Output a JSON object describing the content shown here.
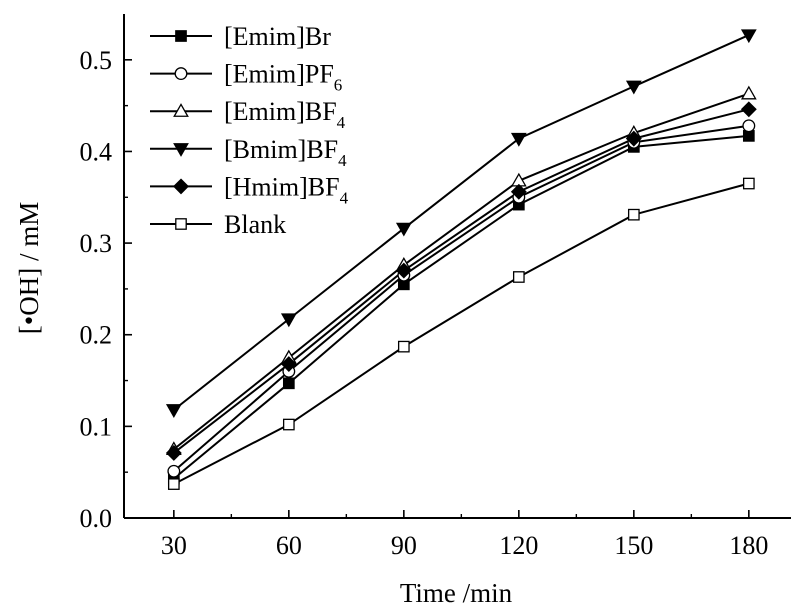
{
  "chart_data": {
    "type": "line",
    "x": [
      30,
      60,
      90,
      120,
      150,
      180
    ],
    "xlabel": "Time /min",
    "ylabel": "[•OH] / mM",
    "xlim": [
      17,
      191
    ],
    "ylim": [
      0.0,
      0.55
    ],
    "xticks": [
      30,
      60,
      90,
      120,
      150,
      180
    ],
    "yticks": [
      0.0,
      0.1,
      0.2,
      0.3,
      0.4,
      0.5
    ],
    "ytick_labels": [
      "0.0",
      "0.1",
      "0.2",
      "0.3",
      "0.4",
      "0.5"
    ],
    "grid": false,
    "legend_position": "top-left",
    "series": [
      {
        "name": "[Emim]Br",
        "label_main": "[Emim]Br",
        "label_sub": "",
        "marker": "square-filled",
        "values": [
          0.043,
          0.147,
          0.255,
          0.342,
          0.405,
          0.417
        ]
      },
      {
        "name": "[Emim]PF6",
        "label_main": "[Emim]PF",
        "label_sub": "6",
        "marker": "circle-open",
        "values": [
          0.051,
          0.16,
          0.265,
          0.35,
          0.41,
          0.428
        ]
      },
      {
        "name": "[Emim]BF4",
        "label_main": "[Emim]BF",
        "label_sub": "4",
        "marker": "triangle-up-open",
        "values": [
          0.075,
          0.175,
          0.276,
          0.368,
          0.42,
          0.463
        ]
      },
      {
        "name": "[Bmim]BF4",
        "label_main": "[Bmim]BF",
        "label_sub": "4",
        "marker": "triangle-down-filled",
        "values": [
          0.118,
          0.217,
          0.316,
          0.414,
          0.471,
          0.527
        ]
      },
      {
        "name": "[Hmim]BF4",
        "label_main": "[Hmim]BF",
        "label_sub": "4",
        "marker": "diamond-filled",
        "values": [
          0.071,
          0.168,
          0.27,
          0.356,
          0.414,
          0.446
        ]
      },
      {
        "name": "Blank",
        "label_main": "Blank",
        "label_sub": "",
        "marker": "square-open",
        "values": [
          0.037,
          0.102,
          0.187,
          0.263,
          0.331,
          0.365
        ]
      }
    ]
  }
}
